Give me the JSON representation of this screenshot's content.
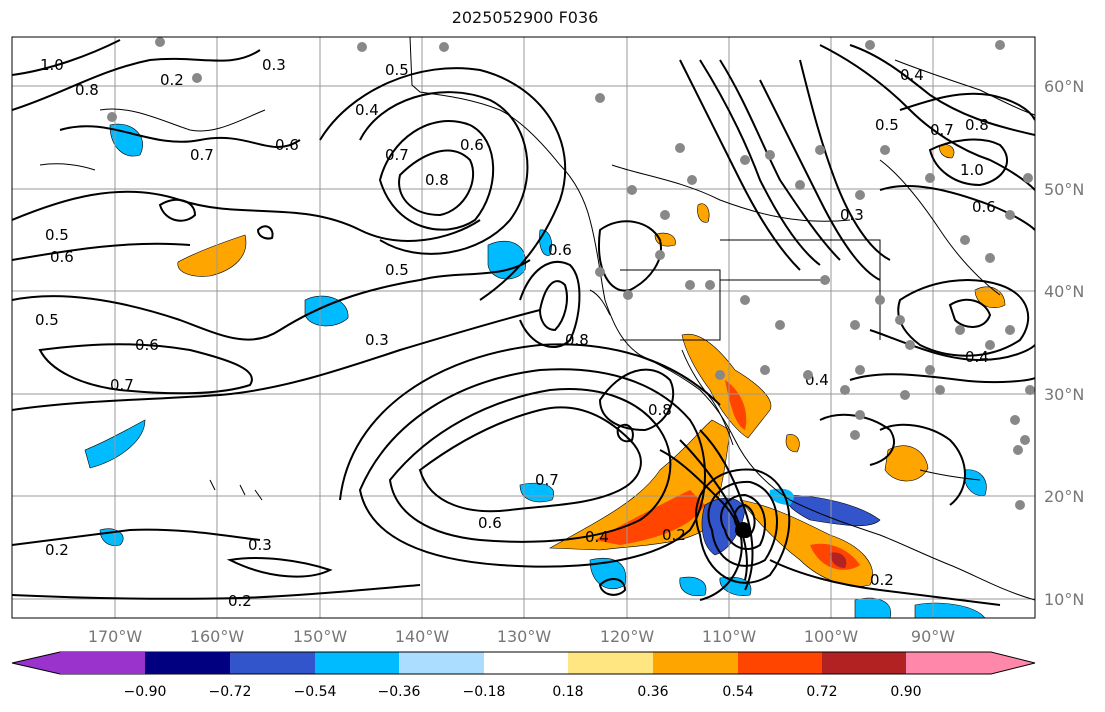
{
  "title": "2025052900 F036",
  "map": {
    "lon_ticks": [
      "170°W",
      "160°W",
      "150°W",
      "140°W",
      "130°W",
      "120°W",
      "110°W",
      "100°W",
      "90°W"
    ],
    "lat_ticks": [
      "60°N",
      "50°N",
      "40°N",
      "30°N",
      "20°N",
      "10°N"
    ],
    "contour_labels": [
      "1.0",
      "0.8",
      "0.7",
      "0.6",
      "0.5",
      "0.4",
      "0.3",
      "0.2",
      "0.5",
      "0.7",
      "0.8",
      "0.6",
      "0.3",
      "0.5",
      "0.6",
      "0.7",
      "0.2",
      "0.3",
      "0.2",
      "0.6",
      "0.4",
      "0.2",
      "0.8",
      "0.7",
      "0.8",
      "0.6",
      "0.4",
      "0.2",
      "0.4",
      "0.5",
      "0.6",
      "1.0",
      "0.3",
      "0.4",
      "0.5",
      "0.6",
      "0.7",
      "0.8"
    ]
  },
  "colorbar": {
    "colors": [
      "#9933cc",
      "#000080",
      "#3355cc",
      "#00bbff",
      "#aaddff",
      "#ffffff",
      "#ffe680",
      "#ffa500",
      "#ff4500",
      "#b22222",
      "#ff88aa"
    ],
    "tick_labels": [
      "−0.90",
      "−0.72",
      "−0.54",
      "−0.36",
      "−0.18",
      "0.18",
      "0.36",
      "0.54",
      "0.72",
      "0.90"
    ]
  },
  "chart_data": {
    "type": "heatmap",
    "title": "2025052900 F036",
    "x_ticks_deg": [
      -170,
      -160,
      -150,
      -140,
      -130,
      -120,
      -110,
      -100,
      -90
    ],
    "y_ticks_deg": [
      60,
      50,
      40,
      30,
      20,
      10
    ],
    "colorbar_levels": [
      -0.9,
      -0.72,
      -0.54,
      -0.36,
      -0.18,
      0.18,
      0.36,
      0.54,
      0.72,
      0.9
    ]
  }
}
